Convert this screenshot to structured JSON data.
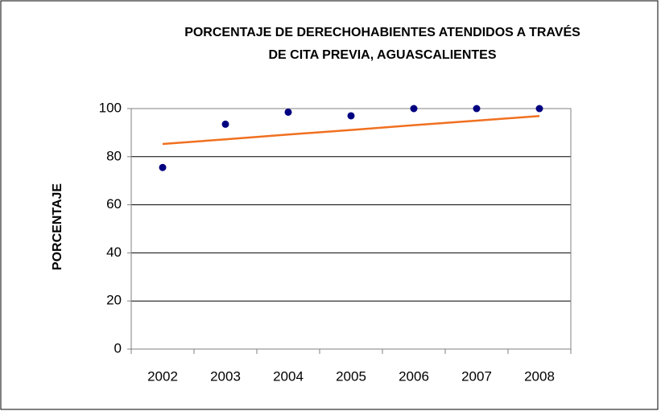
{
  "chart_data": {
    "type": "scatter",
    "title": [
      "PORCENTAJE DE DERECHOHABIENTES ATENDIDOS A TRAVÉS",
      "DE CITA PREVIA, AGUASCALIENTES"
    ],
    "y_label": "PORCENTAJE",
    "categories": [
      "2002",
      "2003",
      "2004",
      "2005",
      "2006",
      "2007",
      "2008"
    ],
    "values": [
      75.5,
      93.5,
      98.5,
      97,
      100,
      100,
      100
    ],
    "color": "#000080",
    "trendline": {
      "color": "#f07020",
      "values": [
        85.3,
        87.2,
        89.2,
        91.1,
        93.1,
        95,
        96.9
      ]
    },
    "ylim": [
      0,
      100
    ],
    "yticks": [
      0,
      20,
      40,
      60,
      80,
      100
    ],
    "grid": true
  }
}
